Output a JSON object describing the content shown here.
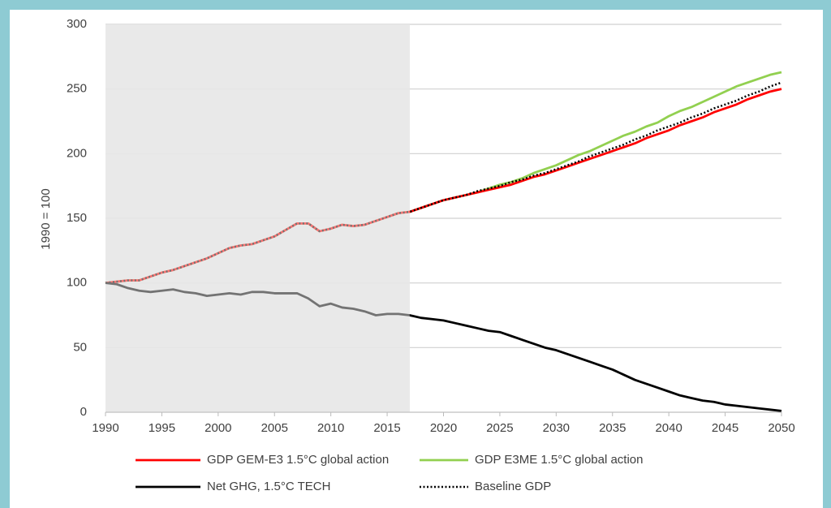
{
  "chart_data": {
    "type": "line",
    "y_label": "1990 = 100",
    "x": [
      1990,
      1991,
      1992,
      1993,
      1994,
      1995,
      1996,
      1997,
      1998,
      1999,
      2000,
      2001,
      2002,
      2003,
      2004,
      2005,
      2006,
      2007,
      2008,
      2009,
      2010,
      2011,
      2012,
      2013,
      2014,
      2015,
      2016,
      2017,
      2018,
      2019,
      2020,
      2021,
      2022,
      2023,
      2024,
      2025,
      2026,
      2027,
      2028,
      2029,
      2030,
      2031,
      2032,
      2033,
      2034,
      2035,
      2036,
      2037,
      2038,
      2039,
      2040,
      2041,
      2042,
      2043,
      2044,
      2045,
      2046,
      2047,
      2048,
      2049,
      2050
    ],
    "shade": [
      1990,
      2017
    ],
    "series": [
      {
        "name": "GDP E3ME 1.5°C global action",
        "color": "#92d050",
        "style": "solid",
        "values": [
          100,
          101,
          102,
          102,
          105,
          108,
          110,
          113,
          116,
          119,
          123,
          127,
          129,
          130,
          133,
          136,
          141,
          146,
          146,
          140,
          142,
          145,
          144,
          145,
          148,
          151,
          154,
          155,
          158,
          161,
          164,
          166,
          168,
          170,
          173,
          176,
          178,
          181,
          185,
          188,
          191,
          195,
          199,
          202,
          206,
          210,
          214,
          217,
          221,
          224,
          229,
          233,
          236,
          240,
          244,
          248,
          252,
          255,
          258,
          261,
          263
        ]
      },
      {
        "name": "GDP GEM-E3 1.5°C global action",
        "color": "#ff0000",
        "style": "solid",
        "values": [
          100,
          101,
          102,
          102,
          105,
          108,
          110,
          113,
          116,
          119,
          123,
          127,
          129,
          130,
          133,
          136,
          141,
          146,
          146,
          140,
          142,
          145,
          144,
          145,
          148,
          151,
          154,
          155,
          158,
          161,
          164,
          166,
          168,
          170,
          172,
          174,
          176,
          179,
          182,
          184,
          187,
          190,
          193,
          196,
          199,
          202,
          205,
          208,
          212,
          215,
          218,
          222,
          225,
          228,
          232,
          235,
          238,
          242,
          245,
          248,
          250
        ]
      },
      {
        "name": "Net GHG, 1.5°C TECH",
        "color": "#000000",
        "style": "solid",
        "values": [
          100,
          99,
          96,
          94,
          93,
          94,
          95,
          93,
          92,
          90,
          91,
          92,
          91,
          93,
          93,
          92,
          92,
          92,
          88,
          82,
          84,
          81,
          80,
          78,
          75,
          76,
          76,
          75,
          73,
          72,
          71,
          69,
          67,
          65,
          63,
          62,
          59,
          56,
          53,
          50,
          48,
          45,
          42,
          39,
          36,
          33,
          29,
          25,
          22,
          19,
          16,
          13,
          11,
          9,
          8,
          6,
          5,
          4,
          3,
          2,
          1
        ]
      },
      {
        "name": "Baseline GDP",
        "color": "#000000",
        "style": "dotted",
        "values": [
          100,
          101,
          102,
          102,
          105,
          108,
          110,
          113,
          116,
          119,
          123,
          127,
          129,
          130,
          133,
          136,
          141,
          146,
          146,
          140,
          142,
          145,
          144,
          145,
          148,
          151,
          154,
          155,
          158,
          161,
          164,
          166,
          168,
          171,
          173,
          175,
          178,
          180,
          183,
          185,
          188,
          191,
          194,
          198,
          201,
          204,
          207,
          211,
          214,
          218,
          221,
          224,
          228,
          231,
          235,
          238,
          241,
          245,
          248,
          252,
          255
        ]
      }
    ],
    "legend_order": [
      1,
      0,
      2,
      3
    ],
    "xlim": [
      1990,
      2050
    ],
    "xticks": [
      1990,
      1995,
      2000,
      2005,
      2010,
      2015,
      2020,
      2025,
      2030,
      2035,
      2040,
      2045,
      2050
    ],
    "ylim": [
      0,
      300
    ],
    "yticks": [
      0,
      50,
      100,
      150,
      200,
      250,
      300
    ],
    "grid": true
  }
}
